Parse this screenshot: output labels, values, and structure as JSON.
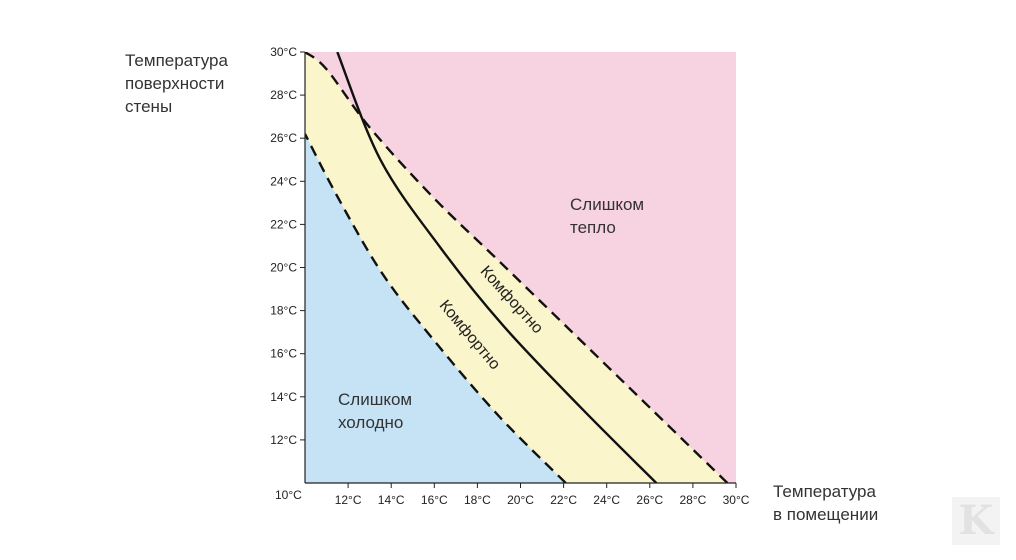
{
  "chart_data": {
    "type": "line",
    "ylabel_lines": [
      "Температура",
      "поверхности",
      "стены"
    ],
    "xlabel_lines": [
      "Температура",
      "в помещении"
    ],
    "origin_label": "10°C",
    "x_ticks": [
      "12°C",
      "14°C",
      "16°C",
      "18°C",
      "20°C",
      "22°C",
      "24°C",
      "26°C",
      "28°C",
      "30°C"
    ],
    "y_ticks": [
      "12°C",
      "14°C",
      "16°C",
      "18°C",
      "20°C",
      "22°C",
      "24°C",
      "26°C",
      "28°C",
      "30°C"
    ],
    "xlim": [
      10,
      30
    ],
    "ylim": [
      10,
      30
    ],
    "zones": {
      "too_warm": [
        "Слишком",
        "тепло"
      ],
      "too_cold": [
        "Слишком",
        "холодно"
      ]
    },
    "comfort_label": "Комфортно",
    "series": [
      {
        "style": "dashed",
        "x": [
          29.6,
          26.0,
          22.5,
          19.0,
          16.0,
          13.0,
          11.0,
          10.0
        ],
        "y": [
          10.0,
          13.5,
          16.9,
          20.3,
          23.2,
          26.5,
          29.2,
          30.0
        ]
      },
      {
        "style": "solid",
        "x": [
          26.3,
          22.8,
          19.2,
          16.3,
          13.5,
          11.5
        ],
        "y": [
          10.0,
          13.5,
          17.3,
          20.9,
          25.0,
          30.0
        ]
      },
      {
        "style": "dashed",
        "x": [
          22.1,
          19.0,
          16.0,
          13.6,
          11.5,
          10.0
        ],
        "y": [
          10.0,
          13.1,
          16.6,
          19.7,
          23.3,
          26.2
        ]
      }
    ],
    "colors": {
      "too_warm": "#f7d2e0",
      "comfort": "#fbf5cb",
      "too_cold": "#c5e3f5",
      "line": "#111111"
    },
    "watermark": "K"
  }
}
